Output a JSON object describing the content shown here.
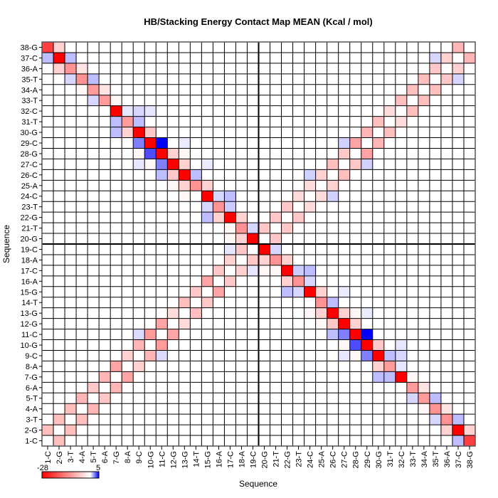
{
  "chart_data": {
    "type": "heatmap",
    "title": "HB/Stacking Energy Contact Map MEAN (Kcal / mol)",
    "xlabel": "Sequence",
    "ylabel": "Sequence",
    "labels": [
      "1-C",
      "2-G",
      "3-T",
      "4-A",
      "5-T",
      "6-A",
      "7-G",
      "8-A",
      "9-C",
      "10-G",
      "11-C",
      "12-G",
      "13-G",
      "14-T",
      "15-G",
      "16-A",
      "17-C",
      "18-A",
      "19-C",
      "20-G",
      "21-T",
      "22-G",
      "23-T",
      "24-C",
      "25-A",
      "26-C",
      "27-C",
      "28-G",
      "29-C",
      "30-G",
      "31-T",
      "32-C",
      "33-T",
      "34-A",
      "35-T",
      "36-A",
      "37-C",
      "38-G"
    ],
    "y_order": "top-to-bottom 38-G ... 1-C",
    "symmetric": true,
    "default_value": 0,
    "colorbar": {
      "min": -28,
      "max": 5,
      "min_label": "-28",
      "max_label": "5",
      "min_color": "#ff0000",
      "zero_color": "#ffffff",
      "max_color": "#0000ff"
    },
    "divider_after_index": 19,
    "entries": [
      [
        38,
        1,
        -21
      ],
      [
        38,
        2,
        -5
      ],
      [
        37,
        1,
        1.3
      ],
      [
        37,
        2,
        -28
      ],
      [
        37,
        3,
        1.3
      ],
      [
        36,
        2,
        -5
      ],
      [
        36,
        3,
        -12
      ],
      [
        36,
        4,
        -3
      ],
      [
        35,
        3,
        0.8
      ],
      [
        35,
        4,
        -12
      ],
      [
        35,
        5,
        1.3
      ],
      [
        34,
        4,
        -1
      ],
      [
        34,
        5,
        -11
      ],
      [
        34,
        6,
        -3
      ],
      [
        33,
        5,
        0.8
      ],
      [
        33,
        6,
        -11
      ],
      [
        33,
        7,
        -1
      ],
      [
        32,
        7,
        -28
      ],
      [
        32,
        8,
        0.5
      ],
      [
        32,
        9,
        0.8
      ],
      [
        32,
        10,
        0.5
      ],
      [
        31,
        7,
        1.3
      ],
      [
        31,
        8,
        -11
      ],
      [
        31,
        9,
        1.3
      ],
      [
        30,
        7,
        1.3
      ],
      [
        30,
        8,
        -5
      ],
      [
        30,
        9,
        -28
      ],
      [
        30,
        10,
        -6
      ],
      [
        29,
        9,
        2.5
      ],
      [
        29,
        10,
        -28
      ],
      [
        29,
        11,
        5
      ],
      [
        29,
        13,
        0.4
      ],
      [
        28,
        9,
        -1
      ],
      [
        28,
        10,
        3.5
      ],
      [
        28,
        11,
        -28
      ],
      [
        28,
        12,
        -5
      ],
      [
        28,
        13,
        -1
      ],
      [
        27,
        9,
        0.5
      ],
      [
        27,
        10,
        -1
      ],
      [
        27,
        11,
        2.5
      ],
      [
        27,
        12,
        -28
      ],
      [
        27,
        13,
        -5
      ],
      [
        27,
        15,
        0.4
      ],
      [
        26,
        11,
        1.3
      ],
      [
        26,
        12,
        -6
      ],
      [
        26,
        13,
        -28
      ],
      [
        26,
        14,
        1.3
      ],
      [
        25,
        12,
        -1
      ],
      [
        25,
        13,
        -5
      ],
      [
        25,
        14,
        -12
      ],
      [
        25,
        15,
        -5
      ],
      [
        24,
        13,
        -1
      ],
      [
        24,
        15,
        -28
      ],
      [
        24,
        16,
        0.8
      ],
      [
        24,
        17,
        1.3
      ],
      [
        23,
        15,
        0.8
      ],
      [
        23,
        16,
        -12
      ],
      [
        23,
        17,
        1.0
      ],
      [
        22,
        15,
        1.3
      ],
      [
        22,
        16,
        -5
      ],
      [
        22,
        17,
        -28
      ],
      [
        22,
        18,
        -5
      ],
      [
        21,
        17,
        -1
      ],
      [
        21,
        18,
        -12
      ],
      [
        21,
        19,
        0.8
      ],
      [
        20,
        17,
        -1
      ],
      [
        20,
        18,
        -5
      ],
      [
        20,
        19,
        -28
      ],
      [
        1,
        2,
        -7
      ],
      [
        2,
        3,
        -7
      ],
      [
        3,
        4,
        -7
      ],
      [
        4,
        5,
        -8
      ],
      [
        5,
        6,
        -6
      ],
      [
        6,
        7,
        -8
      ],
      [
        7,
        8,
        -10
      ],
      [
        8,
        9,
        -5
      ],
      [
        9,
        10,
        -8
      ],
      [
        10,
        11,
        -11
      ],
      [
        11,
        12,
        -10
      ],
      [
        12,
        13,
        -4
      ],
      [
        13,
        14,
        -7
      ],
      [
        14,
        15,
        -6
      ],
      [
        15,
        16,
        -10
      ],
      [
        16,
        17,
        -6
      ],
      [
        17,
        18,
        -5
      ],
      [
        18,
        19,
        -6
      ],
      [
        9,
        11,
        0.7
      ],
      [
        17,
        19,
        0.5
      ],
      [
        20,
        21,
        -6
      ],
      [
        21,
        22,
        -6
      ],
      [
        22,
        23,
        -6
      ],
      [
        23,
        24,
        -4
      ],
      [
        24,
        25,
        -4
      ],
      [
        25,
        26,
        -5
      ],
      [
        26,
        27,
        -7
      ],
      [
        27,
        28,
        -6
      ],
      [
        28,
        29,
        -10
      ],
      [
        29,
        30,
        -8
      ],
      [
        30,
        31,
        -7
      ],
      [
        31,
        32,
        -4
      ],
      [
        32,
        33,
        -7
      ],
      [
        33,
        34,
        -7
      ],
      [
        34,
        35,
        -7
      ],
      [
        35,
        36,
        -6
      ],
      [
        36,
        37,
        -5
      ],
      [
        37,
        38,
        -8
      ],
      [
        24,
        26,
        0.9
      ],
      [
        27,
        29,
        0.9
      ],
      [
        35,
        37,
        0.8
      ]
    ]
  }
}
